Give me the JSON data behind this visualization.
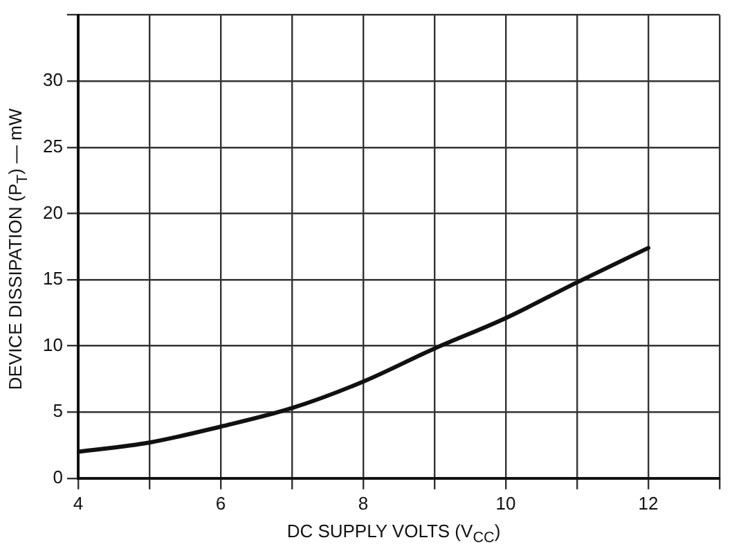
{
  "chart_data": {
    "type": "line",
    "xlabel": "DC SUPPLY VOLTS (V$_{CC}$)",
    "ylabel": "DEVICE DISSIPATION (P$_{T}$) — mW",
    "x": [
      4,
      5,
      6,
      7,
      8,
      9,
      10,
      11,
      12
    ],
    "series": [
      {
        "color": "#111111",
        "values": [
          2.0,
          2.7,
          3.9,
          5.3,
          7.3,
          9.8,
          12.1,
          14.8,
          17.4
        ]
      }
    ],
    "xlim": [
      4,
      13
    ],
    "xticks": [
      4,
      {
        "value": 5,
        "label": null
      },
      6,
      {
        "value": 7,
        "label": null
      },
      8,
      {
        "value": 9,
        "label": null
      },
      10,
      {
        "value": 11,
        "label": null
      },
      12,
      {
        "value": 13,
        "label": null
      }
    ],
    "ylim": [
      0,
      35
    ],
    "yticks": [
      0,
      5,
      10,
      15,
      20,
      25,
      30,
      {
        "value": 35,
        "label": null
      }
    ],
    "grid": true,
    "marker": "none",
    "line_style": "solid",
    "legend": false
  }
}
